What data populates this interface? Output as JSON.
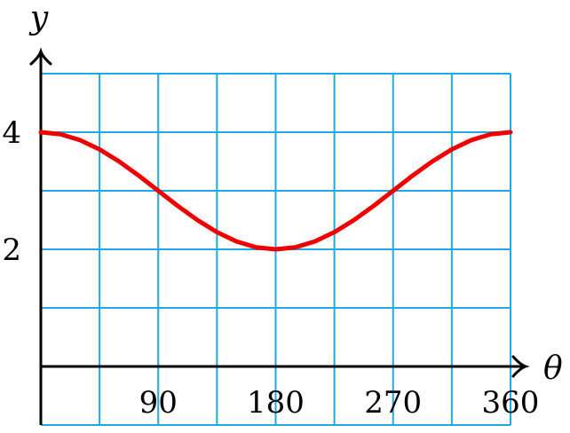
{
  "chart_data": {
    "type": "line",
    "title": "",
    "xlabel": "θ",
    "ylabel": "y",
    "xlim": [
      0,
      360
    ],
    "ylim": [
      -1,
      5
    ],
    "x_tick_labels": [
      "90",
      "180",
      "270",
      "360"
    ],
    "y_tick_labels": [
      "4",
      "2"
    ],
    "grid": true,
    "grid_x_step": 45,
    "grid_y_step": 1,
    "series": [
      {
        "x": [
          0,
          15,
          30,
          45,
          60,
          75,
          90,
          105,
          120,
          135,
          150,
          165,
          180,
          195,
          210,
          225,
          240,
          255,
          270,
          285,
          300,
          315,
          330,
          345,
          360
        ],
        "y": [
          4,
          3.966,
          3.866,
          3.707,
          3.5,
          3.259,
          3,
          2.741,
          2.5,
          2.293,
          2.134,
          2.034,
          2,
          2.034,
          2.134,
          2.293,
          2.5,
          2.741,
          3,
          3.259,
          3.5,
          3.707,
          3.866,
          3.966,
          4
        ]
      }
    ]
  },
  "colors": {
    "grid": "#1fa9e1",
    "curve": "#ee0000",
    "axis": "#000000"
  }
}
